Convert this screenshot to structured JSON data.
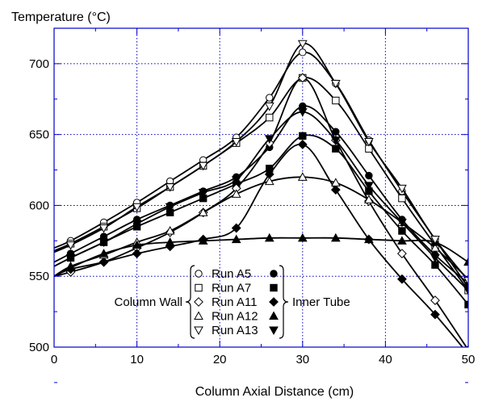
{
  "chart_data": {
    "type": "line",
    "ylabel": "Temperature (°C)",
    "xlabel": "Column Axial Distance (cm)",
    "xlim": [
      0,
      50
    ],
    "ylim": [
      500,
      725
    ],
    "x_ticks": [
      "0",
      "10",
      "20",
      "30",
      "40",
      "50"
    ],
    "y_ticks": [
      "500",
      "550",
      "600",
      "650",
      "700"
    ],
    "grid": true,
    "legend": {
      "left_group_label": "Column Wall",
      "right_group_label": "Inner Tube",
      "runs": [
        "Run A5",
        "Run A7",
        "Run A11",
        "Run A12",
        "Run A13"
      ],
      "placement": "bottom-center"
    },
    "series": [
      {
        "name": "Run A5",
        "group": "Column Wall",
        "marker": "circle-open",
        "x": [
          0,
          2,
          6,
          10,
          14,
          18,
          22,
          26,
          30,
          34,
          38,
          42,
          46,
          50
        ],
        "values": [
          570,
          575,
          588,
          602,
          617,
          632,
          648,
          676,
          708,
          686,
          646,
          610,
          576,
          542
        ]
      },
      {
        "name": "Run A5",
        "group": "Inner Tube",
        "marker": "circle-filled",
        "x": [
          0,
          2,
          6,
          10,
          14,
          18,
          22,
          26,
          30,
          34,
          38,
          42,
          46,
          50
        ],
        "values": [
          560,
          566,
          578,
          590,
          600,
          610,
          620,
          641,
          670,
          652,
          621,
          590,
          565,
          545
        ]
      },
      {
        "name": "Run A7",
        "group": "Column Wall",
        "marker": "square-open",
        "x": [
          0,
          2,
          6,
          10,
          14,
          18,
          22,
          26,
          30,
          34,
          38,
          42,
          46,
          50
        ],
        "values": [
          568,
          573,
          585,
          598,
          613,
          628,
          644,
          662,
          690,
          674,
          640,
          605,
          572,
          540
        ]
      },
      {
        "name": "Run A7",
        "group": "Inner Tube",
        "marker": "square-filled",
        "x": [
          0,
          2,
          6,
          10,
          14,
          18,
          22,
          26,
          30,
          34,
          38,
          42,
          46,
          50
        ],
        "values": [
          557,
          563,
          574,
          585,
          595,
          605,
          615,
          626,
          649,
          640,
          610,
          582,
          558,
          530
        ]
      },
      {
        "name": "Run A11",
        "group": "Column Wall",
        "marker": "diamond-open",
        "x": [
          0,
          2,
          6,
          10,
          14,
          18,
          22,
          26,
          30,
          34,
          38,
          42,
          46,
          50
        ],
        "values": [
          550,
          553,
          560,
          570,
          581,
          595,
          612,
          644,
          690,
          646,
          603,
          566,
          533,
          498
        ]
      },
      {
        "name": "Run A11",
        "group": "Inner Tube",
        "marker": "diamond-filled",
        "x": [
          0,
          2,
          6,
          10,
          14,
          18,
          22,
          26,
          30,
          34,
          38,
          42,
          46,
          50
        ],
        "values": [
          550,
          555,
          560,
          566,
          571,
          576,
          584,
          622,
          643,
          611,
          576,
          548,
          523,
          495
        ]
      },
      {
        "name": "Run A12",
        "group": "Column Wall",
        "marker": "triangle-up-open",
        "x": [
          0,
          2,
          6,
          10,
          14,
          18,
          22,
          26,
          30,
          34,
          38,
          42,
          46,
          50
        ],
        "values": [
          550,
          557,
          565,
          574,
          582,
          595,
          608,
          617,
          620,
          616,
          604,
          588,
          570,
          548
        ]
      },
      {
        "name": "Run A12",
        "group": "Inner Tube",
        "marker": "triangle-up-filled",
        "x": [
          0,
          2,
          6,
          10,
          14,
          18,
          22,
          26,
          30,
          34,
          38,
          42,
          46,
          50
        ],
        "values": [
          550,
          556,
          566,
          572,
          574,
          575,
          576,
          577,
          577,
          577,
          576,
          575,
          574,
          560
        ]
      },
      {
        "name": "Run A13",
        "group": "Column Wall",
        "marker": "triangle-down-open",
        "x": [
          0,
          2,
          6,
          10,
          14,
          18,
          22,
          26,
          30,
          34,
          38,
          42,
          46,
          50
        ],
        "values": [
          567,
          572,
          584,
          599,
          613,
          628,
          645,
          670,
          714,
          686,
          645,
          612,
          576,
          547
        ]
      },
      {
        "name": "Run A13",
        "group": "Inner Tube",
        "marker": "triangle-down-filled",
        "x": [
          0,
          2,
          6,
          10,
          14,
          18,
          22,
          26,
          30,
          34,
          38,
          42,
          46,
          50
        ],
        "values": [
          557,
          563,
          574,
          587,
          599,
          609,
          618,
          647,
          666,
          646,
          614,
          588,
          563,
          540
        ]
      }
    ]
  },
  "colors": {
    "line": "#000000",
    "frame": "#0000cc",
    "grid": "#0000cc"
  }
}
